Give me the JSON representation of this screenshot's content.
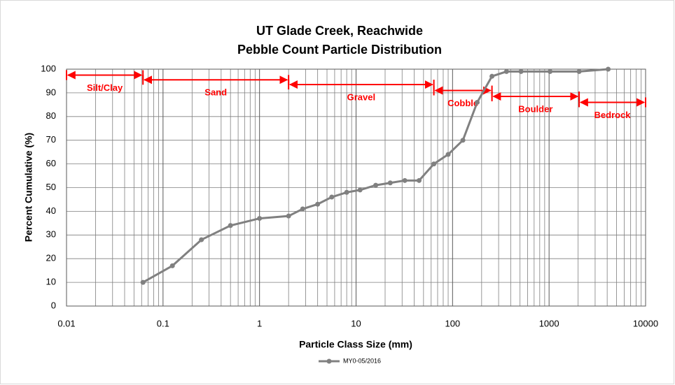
{
  "chart_data": {
    "type": "line",
    "title": [
      "UT Glade Creek, Reachwide",
      "Pebble Count Particle Distribution"
    ],
    "x_label": "Particle Class Size (mm)",
    "y_label": "Percent Cumulative (%)",
    "x_scale": "log",
    "xlim": [
      0.01,
      10000
    ],
    "xticks": [
      0.01,
      0.1,
      1,
      10,
      100,
      1000,
      10000
    ],
    "ylim": [
      0,
      100
    ],
    "yticks": [
      0,
      10,
      20,
      30,
      40,
      50,
      60,
      70,
      80,
      90,
      100
    ],
    "grid": true,
    "minor_grid": true,
    "legend": "bottom",
    "series": [
      {
        "name": "MY0-05/2016",
        "color": "#808080",
        "x": [
          0.062,
          0.125,
          0.25,
          0.5,
          1,
          2,
          2.8,
          4,
          5.6,
          8,
          11,
          16,
          22.6,
          32,
          45,
          64,
          90,
          128,
          180,
          256,
          362,
          512,
          1024,
          2048,
          4096
        ],
        "values": [
          10,
          17,
          28,
          34,
          37,
          38,
          41,
          43,
          46,
          48,
          49,
          51,
          52,
          53,
          53,
          60,
          64,
          70,
          86,
          97,
          99,
          99,
          99,
          99,
          100
        ]
      }
    ],
    "annotations": [
      {
        "text": "Silt/Clay",
        "x1": 0.01,
        "x2": 0.062,
        "y": 97.5
      },
      {
        "text": "Sand",
        "x1": 0.062,
        "x2": 2,
        "y": 95.5
      },
      {
        "text": "Gravel",
        "x1": 2,
        "x2": 64,
        "y": 93.5
      },
      {
        "text": "Cobble",
        "x1": 64,
        "x2": 256,
        "y": 91
      },
      {
        "text": "Boulder",
        "x1": 256,
        "x2": 2048,
        "y": 88.5
      },
      {
        "text": "Bedrock",
        "x1": 2048,
        "x2": 10000,
        "y": 86
      }
    ],
    "annotation_color": "#ff0000"
  }
}
